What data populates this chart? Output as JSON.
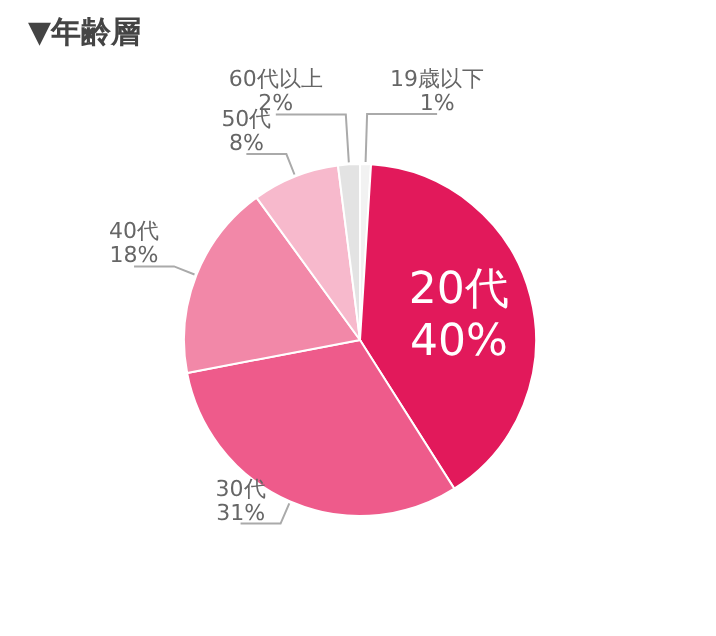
{
  "chart_data": {
    "type": "pie",
    "title": "▼年齢層",
    "categories": [
      "19歳以下",
      "20代",
      "30代",
      "40代",
      "50代",
      "60代以上"
    ],
    "values": [
      1,
      40,
      31,
      18,
      8,
      2
    ],
    "value_labels": [
      "1%",
      "40%",
      "31%",
      "18%",
      "8%",
      "2%"
    ],
    "colors": [
      "#f2f2f2",
      "#e2195b",
      "#ee5b8b",
      "#f288a8",
      "#f7b9cc",
      "#e3e3e3"
    ]
  }
}
